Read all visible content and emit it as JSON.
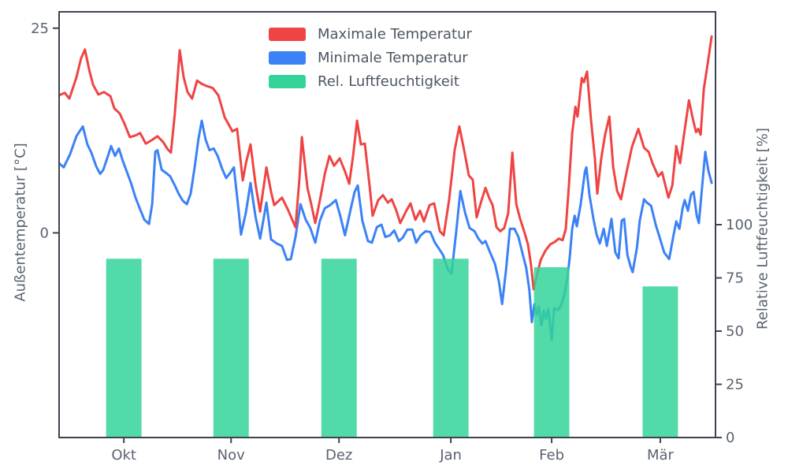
{
  "colors": {
    "max_temp": "#ef4444",
    "min_temp": "#3b82f6",
    "humidity": "#34d399",
    "axis": "#3c4453",
    "text": "#5a6370",
    "legend_text": "#4d5563",
    "background": "#ffffff"
  },
  "chart_data": {
    "type": "line+bar",
    "title": "",
    "left_axis": {
      "label": "Außentemperatur [°C]",
      "ticks": [
        25,
        0
      ],
      "ylim": [
        -25,
        27
      ]
    },
    "right_axis": {
      "label": "Relative Luftfeuchtigkeit [%]",
      "ticks": [
        100,
        75,
        50,
        25,
        0
      ],
      "ylim": [
        0,
        200
      ]
    },
    "x_axis": {
      "tick_labels": [
        "Okt",
        "Nov",
        "Dez",
        "Jan",
        "Feb",
        "Mär"
      ],
      "tick_days": [
        18.3,
        48.6,
        79.1,
        110.7,
        139.2,
        169.9
      ],
      "xlim_days": [
        0,
        185.5
      ]
    },
    "legend": [
      {
        "label": "Maximale Temperatur",
        "color": "#ef4444"
      },
      {
        "label": "Minimale Temperatur",
        "color": "#3b82f6"
      },
      {
        "label": "Rel. Luftfeuchtigkeit",
        "color": "#34d399"
      }
    ],
    "series": [
      {
        "name": "Maximale Temperatur",
        "type": "line",
        "unit": "°C",
        "color": "#ef4444",
        "x": [
          0.0,
          1.6,
          2.9,
          4.9,
          6.2,
          7.3,
          8.5,
          9.6,
          11.1,
          12.7,
          14.5,
          15.6,
          17.1,
          18.5,
          20.0,
          21.6,
          22.9,
          24.5,
          26.1,
          27.8,
          29.4,
          30.7,
          31.6,
          32.7,
          34.1,
          35.2,
          36.3,
          37.6,
          39.0,
          40.3,
          41.9,
          43.4,
          45.0,
          46.8,
          49.0,
          50.3,
          51.9,
          52.8,
          54.1,
          55.5,
          56.8,
          58.6,
          59.9,
          60.8,
          63.0,
          64.6,
          65.9,
          66.8,
          67.9,
          68.6,
          70.2,
          71.3,
          72.4,
          73.7,
          75.1,
          76.4,
          77.7,
          79.3,
          80.8,
          82.0,
          83.1,
          84.2,
          85.3,
          86.4,
          87.8,
          88.6,
          90.2,
          91.5,
          92.9,
          94.0,
          95.3,
          96.4,
          98.0,
          99.3,
          100.7,
          102.0,
          103.1,
          104.7,
          106.0,
          107.6,
          108.7,
          110.2,
          111.8,
          113.1,
          114.5,
          115.8,
          116.9,
          118.0,
          119.4,
          120.5,
          121.6,
          122.5,
          123.6,
          124.7,
          125.8,
          126.9,
          128.1,
          129.2,
          130.3,
          131.4,
          132.5,
          133.4,
          134.1,
          135.0,
          136.1,
          137.4,
          138.8,
          140.1,
          141.2,
          142.3,
          143.2,
          144.1,
          145.0,
          145.9,
          146.5,
          147.7,
          148.3,
          149.2,
          150.3,
          151.4,
          152.1,
          153.2,
          154.3,
          155.5,
          156.6,
          157.7,
          158.8,
          160.4,
          161.9,
          163.7,
          165.3,
          166.6,
          167.7,
          169.3,
          170.4,
          172.2,
          173.3,
          174.4,
          175.5,
          176.6,
          178.0,
          179.1,
          180.0,
          180.6,
          181.3,
          182.2,
          183.1,
          184.4
        ],
        "y": [
          16.8,
          17.1,
          16.4,
          19.0,
          21.3,
          22.4,
          19.9,
          18.1,
          16.9,
          17.2,
          16.7,
          15.2,
          14.6,
          13.3,
          11.7,
          11.9,
          12.2,
          10.9,
          11.3,
          11.8,
          11.1,
          10.2,
          9.8,
          14.5,
          22.3,
          19.0,
          17.2,
          16.4,
          18.6,
          18.2,
          17.9,
          17.7,
          16.8,
          14.1,
          12.4,
          12.7,
          6.4,
          8.5,
          10.8,
          6.0,
          2.6,
          8.0,
          5.0,
          3.4,
          4.3,
          2.9,
          1.6,
          0.7,
          6.5,
          11.7,
          5.5,
          3.4,
          1.2,
          4.0,
          7.2,
          9.4,
          8.2,
          9.1,
          7.5,
          6.0,
          9.5,
          13.7,
          10.8,
          10.9,
          5.5,
          2.1,
          4.0,
          4.6,
          3.7,
          4.1,
          2.7,
          1.2,
          2.6,
          3.6,
          1.6,
          2.7,
          1.4,
          3.4,
          3.6,
          0.2,
          -0.3,
          4.0,
          10.1,
          13.0,
          10.0,
          7.0,
          6.5,
          1.9,
          4.0,
          5.5,
          4.2,
          3.4,
          0.7,
          0.2,
          0.6,
          2.4,
          9.8,
          3.5,
          1.7,
          0.2,
          -1.4,
          -4.0,
          -6.9,
          -5.3,
          -3.3,
          -2.2,
          -1.4,
          -1.1,
          -0.7,
          -0.9,
          0.5,
          6.0,
          12.1,
          15.4,
          14.2,
          18.9,
          18.4,
          19.7,
          13.9,
          9.1,
          4.8,
          9.1,
          12.0,
          14.2,
          8.0,
          5.1,
          4.1,
          7.5,
          10.5,
          12.7,
          10.4,
          9.9,
          8.5,
          6.9,
          7.4,
          4.3,
          5.8,
          10.6,
          8.5,
          12.0,
          16.2,
          13.9,
          12.3,
          12.7,
          12.0,
          17.6,
          20.1,
          24.0
        ]
      },
      {
        "name": "Minimale Temperatur",
        "type": "line",
        "unit": "°C",
        "color": "#3b82f6",
        "x": [
          0.0,
          1.3,
          3.1,
          4.9,
          6.7,
          8.0,
          9.1,
          10.5,
          11.6,
          12.5,
          13.8,
          14.7,
          15.8,
          16.9,
          18.0,
          19.2,
          20.3,
          21.6,
          22.7,
          24.1,
          25.4,
          26.3,
          27.2,
          27.8,
          29.0,
          30.3,
          31.4,
          32.7,
          33.9,
          35.0,
          36.1,
          37.2,
          38.3,
          39.4,
          40.3,
          41.4,
          42.5,
          43.7,
          44.8,
          46.1,
          47.2,
          48.3,
          49.4,
          50.8,
          51.4,
          52.8,
          54.1,
          55.5,
          56.8,
          58.6,
          59.9,
          61.5,
          63.0,
          64.4,
          65.5,
          66.8,
          68.2,
          69.7,
          71.0,
          72.4,
          73.7,
          75.1,
          76.6,
          78.2,
          79.5,
          80.8,
          82.2,
          83.5,
          84.4,
          85.7,
          87.3,
          88.4,
          89.8,
          91.1,
          92.2,
          93.5,
          94.7,
          96.0,
          97.1,
          98.4,
          99.8,
          100.9,
          102.2,
          103.6,
          104.9,
          106.2,
          107.3,
          108.5,
          109.8,
          110.9,
          112.2,
          113.4,
          114.7,
          116.0,
          117.4,
          118.5,
          119.6,
          120.5,
          121.8,
          123.2,
          124.3,
          125.2,
          126.3,
          127.4,
          128.7,
          129.8,
          130.9,
          132.0,
          132.9,
          133.6,
          134.3,
          135.0,
          135.6,
          136.3,
          137.0,
          137.6,
          138.3,
          139.2,
          139.9,
          141.0,
          141.9,
          142.8,
          143.7,
          144.3,
          145.0,
          145.7,
          146.3,
          147.4,
          148.6,
          149.0,
          149.9,
          151.0,
          151.9,
          152.8,
          153.9,
          154.8,
          156.1,
          157.2,
          158.1,
          159.0,
          159.7,
          160.6,
          161.5,
          162.1,
          163.3,
          164.1,
          165.3,
          166.1,
          167.3,
          168.6,
          169.9,
          171.0,
          172.4,
          173.5,
          174.4,
          175.3,
          176.2,
          176.8,
          177.7,
          178.6,
          179.3,
          180.2,
          180.8,
          181.7,
          182.6,
          183.5,
          184.4
        ],
        "y": [
          8.5,
          8.0,
          9.6,
          11.8,
          13.0,
          10.8,
          9.8,
          8.1,
          7.2,
          7.7,
          9.4,
          10.6,
          9.4,
          10.3,
          8.8,
          7.4,
          6.1,
          4.3,
          3.1,
          1.6,
          1.1,
          3.5,
          9.9,
          10.1,
          7.7,
          7.3,
          6.9,
          5.8,
          4.7,
          3.9,
          3.5,
          4.8,
          8.0,
          11.5,
          13.7,
          11.4,
          10.1,
          10.3,
          9.4,
          7.8,
          6.7,
          7.3,
          8.0,
          2.5,
          -0.2,
          2.5,
          6.1,
          2.0,
          -0.7,
          3.7,
          -0.8,
          -1.3,
          -1.6,
          -3.3,
          -3.2,
          -0.5,
          3.5,
          1.6,
          0.6,
          -1.2,
          1.5,
          3.0,
          3.4,
          4.0,
          2.0,
          -0.3,
          2.5,
          5.0,
          5.8,
          1.5,
          -1.0,
          -1.2,
          0.7,
          1.0,
          -0.5,
          -0.3,
          0.3,
          -1.0,
          -0.6,
          0.4,
          0.4,
          -1.2,
          -0.3,
          0.2,
          0.1,
          -1.2,
          -1.9,
          -2.7,
          -4.4,
          -5.0,
          0.0,
          5.1,
          2.5,
          0.6,
          0.2,
          -0.7,
          -1.3,
          -1.0,
          -2.4,
          -3.8,
          -6.0,
          -8.7,
          -4.5,
          0.5,
          0.5,
          -0.5,
          -2.4,
          -4.3,
          -7.0,
          -10.9,
          -8.7,
          -10.0,
          -9.0,
          -11.3,
          -9.5,
          -10.5,
          -9.3,
          -13.1,
          -9.2,
          -9.4,
          -8.8,
          -7.5,
          -5.3,
          -3.0,
          0.5,
          2.1,
          0.8,
          3.5,
          7.5,
          8.0,
          4.6,
          1.7,
          -0.2,
          -1.3,
          0.5,
          -1.6,
          1.7,
          -2.4,
          -3.1,
          1.5,
          1.7,
          -2.7,
          -4.1,
          -4.8,
          -1.8,
          1.5,
          4.1,
          3.7,
          3.3,
          1.0,
          -0.8,
          -2.4,
          -3.2,
          -0.6,
          1.4,
          0.5,
          3.0,
          4.0,
          2.7,
          4.7,
          5.0,
          2.1,
          1.2,
          5.5,
          9.9,
          7.6,
          6.1
        ]
      },
      {
        "name": "Rel. Luftfeuchtigkeit",
        "type": "bar",
        "unit": "%",
        "color": "#34d399",
        "categories": [
          "Okt",
          "Nov",
          "Dez",
          "Jan",
          "Feb",
          "Mär"
        ],
        "values": [
          84,
          84,
          84,
          84,
          80,
          71
        ],
        "bar_width_days": 10
      }
    ]
  }
}
